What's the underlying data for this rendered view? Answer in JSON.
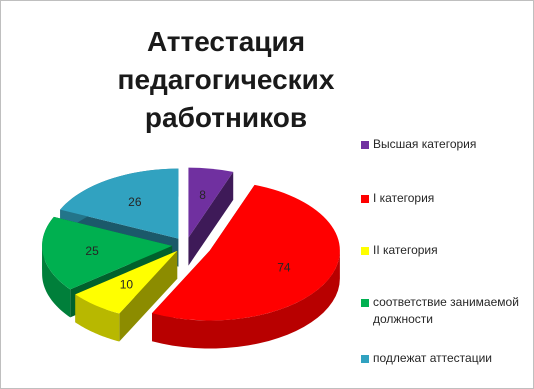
{
  "chart_data": {
    "type": "pie",
    "title": "Аттестация педагогических работников",
    "categories": [
      "Высшая категория",
      "I категория",
      "II категория",
      "соответствие занимаемой должности",
      "подлежат аттестации"
    ],
    "values": [
      8,
      74,
      10,
      25,
      26
    ],
    "colors": [
      "#7030a0",
      "#ff0000",
      "#ffff00",
      "#00b050",
      "#31a2c0"
    ],
    "legend_position": "right",
    "style": "3d exploded pie"
  },
  "title_lines": [
    "Аттестация педагогических",
    "работников"
  ],
  "labels": [
    "8",
    "74",
    "10",
    "25",
    "26"
  ],
  "legend": [
    {
      "label": "Высшая категория"
    },
    {
      "label": "I категория"
    },
    {
      "label": "II категория"
    },
    {
      "label": "соответствие занимаемой должности"
    },
    {
      "label": "подлежат аттестации"
    }
  ]
}
